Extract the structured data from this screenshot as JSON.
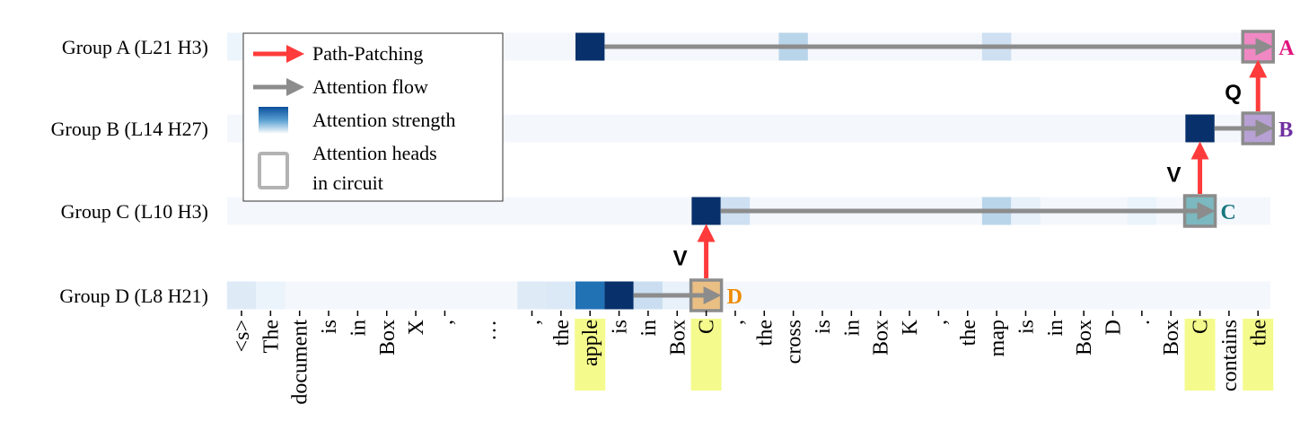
{
  "groups": [
    {
      "label": "Group A (L21 H3)",
      "letter": "A",
      "box_color": "#ee7bbd",
      "letter_color": "#e0157f",
      "target": 35,
      "source": 12,
      "attention": {
        "0": 0.04,
        "12": 1.0,
        "19": 0.3,
        "26": 0.2
      }
    },
    {
      "label": "Group B (L14 H27)",
      "letter": "B",
      "box_color": "#b096cf",
      "letter_color": "#7030a0",
      "target": 35,
      "source": 33,
      "attention": {
        "33": 1.0
      }
    },
    {
      "label": "Group C (L10 H3)",
      "letter": "C",
      "box_color": "#6fb0b8",
      "letter_color": "#17777f",
      "target": 33,
      "source": 16,
      "attention": {
        "16": 1.0,
        "17": 0.2,
        "26": 0.3,
        "27": 0.06,
        "31": 0.05
      }
    },
    {
      "label": "Group D (L8 H21)",
      "letter": "D",
      "box_color": "#e9b877",
      "letter_color": "#f08a00",
      "target": 16,
      "source": 13,
      "attention": {
        "0": 0.1,
        "1": 0.05,
        "10": 0.1,
        "11": 0.12,
        "12": 0.85,
        "13": 1.0,
        "14": 0.22,
        "15": 0.06
      }
    }
  ],
  "tokens": [
    "<s>",
    "The",
    "document",
    "is",
    "in",
    "Box",
    "X",
    ",",
    "…",
    "",
    ",",
    "the",
    "apple",
    "is",
    "in",
    "Box",
    "C",
    ",",
    "the",
    "cross",
    "is",
    "in",
    "Box",
    "K",
    ",",
    "the",
    "map",
    "is",
    "in",
    "Box",
    "D",
    ".",
    "Box",
    "C",
    "contains",
    "the"
  ],
  "highlighted_tokens": [
    12,
    16,
    33,
    35
  ],
  "patching_edges": [
    {
      "from_group": 3,
      "to_group": 2,
      "label": "V"
    },
    {
      "from_group": 2,
      "to_group": 1,
      "label": "V"
    },
    {
      "from_group": 1,
      "to_group": 0,
      "label": "Q"
    }
  ],
  "legend": {
    "path_patching": "Path-Patching",
    "attention_flow": "Attention flow",
    "attention_strength": "Attention strength",
    "heads_line1": "Attention heads",
    "heads_line2": "in circuit"
  },
  "colors": {
    "path_patching": "#ff3b3b",
    "attention_flow": "#8c8c8c",
    "highlight": "#f4fb8c",
    "strength_low": "#f7fbff",
    "strength_high": "#08306b"
  }
}
